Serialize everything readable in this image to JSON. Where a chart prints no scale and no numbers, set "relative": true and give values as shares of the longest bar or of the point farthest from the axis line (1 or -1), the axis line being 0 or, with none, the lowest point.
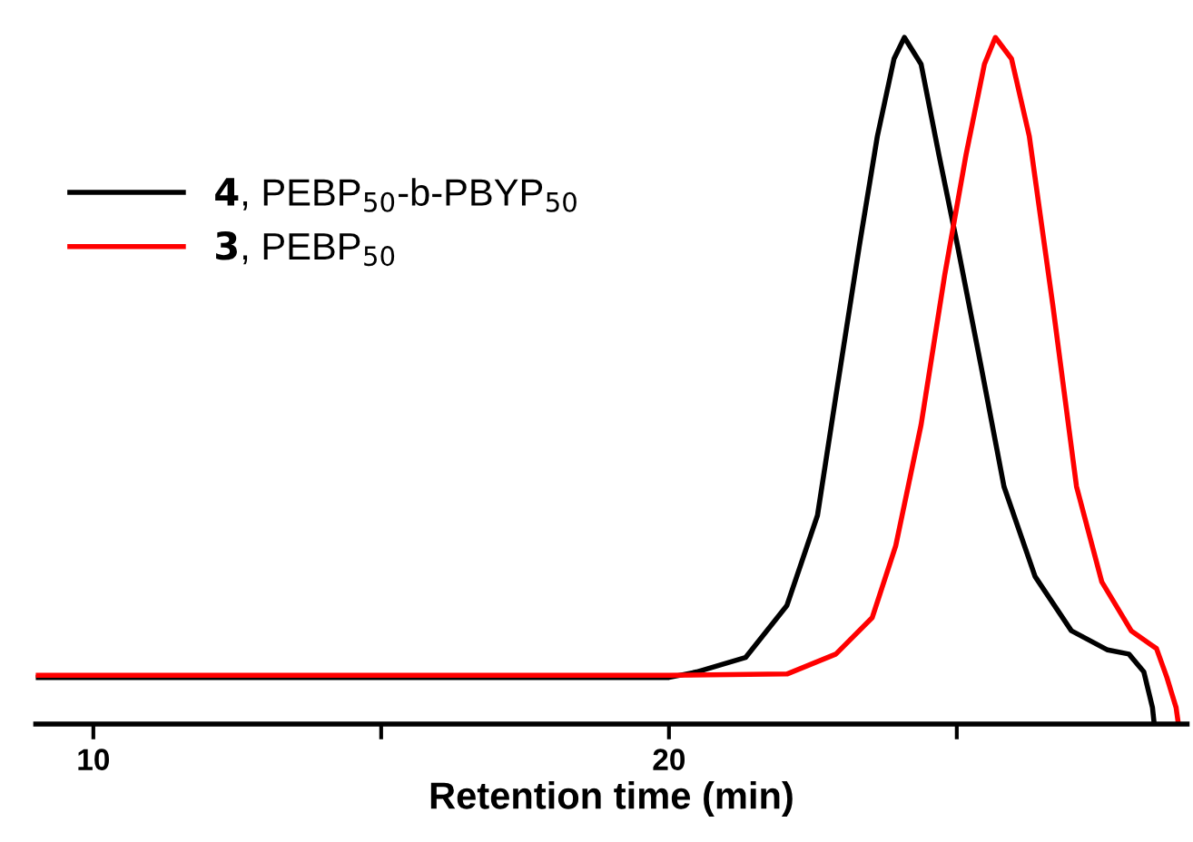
{
  "chart_data": {
    "type": "line",
    "xlabel": "Retention time (min)",
    "relative": true,
    "xlim": [
      9,
      29
    ],
    "xticks": [
      10,
      {
        "value": 15,
        "label": null
      },
      20,
      {
        "value": 25,
        "label": null
      }
    ],
    "tick_labels": "x",
    "legend": "top left",
    "grid": false,
    "marker": "none",
    "line_style": "solid",
    "series": [
      {
        "name": "4, PEBP$_{50}$-b-PBYP$_{50}$",
        "color": "#000000",
        "x": [
          9,
          12,
          15,
          18,
          20,
          20.48,
          21.33,
          22.05,
          22.58,
          22.9,
          23.31,
          23.62,
          23.91,
          24.09,
          24.38,
          24.69,
          25.01,
          25.42,
          25.82,
          26.36,
          26.99,
          27.62,
          27.99,
          28.25,
          28.4,
          28.43
        ],
        "values": [
          0.068,
          0.068,
          0.068,
          0.068,
          0.068,
          0.076,
          0.097,
          0.173,
          0.304,
          0.478,
          0.698,
          0.856,
          0.969,
          1.0,
          0.961,
          0.829,
          0.698,
          0.522,
          0.346,
          0.215,
          0.136,
          0.108,
          0.102,
          0.076,
          0.024,
          0
        ]
      },
      {
        "name": "3, PEBP$_{50}$",
        "color": "#ff0000",
        "x": [
          9,
          12,
          15,
          18,
          20,
          22.05,
          22.9,
          23.53,
          23.94,
          24.38,
          24.79,
          25.16,
          25.48,
          25.67,
          25.95,
          26.26,
          26.67,
          27.08,
          27.52,
          28.03,
          28.47,
          28.65,
          28.81,
          28.85
        ],
        "values": [
          0.071,
          0.071,
          0.071,
          0.071,
          0.071,
          0.073,
          0.102,
          0.155,
          0.26,
          0.436,
          0.654,
          0.829,
          0.961,
          1.0,
          0.969,
          0.856,
          0.609,
          0.346,
          0.207,
          0.136,
          0.11,
          0.068,
          0.024,
          0
        ]
      }
    ]
  }
}
